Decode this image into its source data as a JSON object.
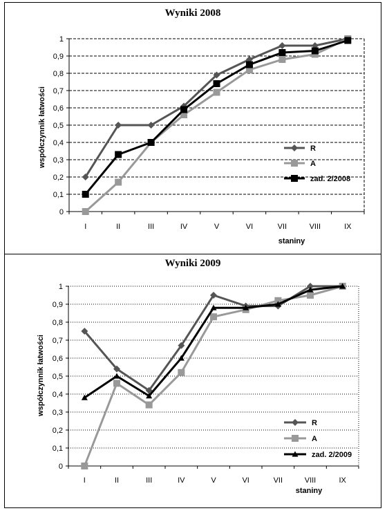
{
  "chart_data": [
    {
      "type": "line",
      "title": "Wyniki 2008",
      "xlabel": "staniny",
      "ylabel": "współczynnik łatwości",
      "categories": [
        "I",
        "II",
        "III",
        "IV",
        "V",
        "VI",
        "VII",
        "VIII",
        "IX"
      ],
      "ylim": [
        0,
        1
      ],
      "yticks": [
        "0",
        "0,1",
        "0,2",
        "0,3",
        "0,4",
        "0,5",
        "0,6",
        "0,7",
        "0,8",
        "0,9",
        "1"
      ],
      "grid": "horizontal dashed",
      "legend_position": "right",
      "series": [
        {
          "name": "R",
          "color": "#555555",
          "marker": "diamond",
          "values": [
            0.2,
            0.5,
            0.5,
            0.61,
            0.79,
            0.88,
            0.96,
            0.96,
            1.0
          ]
        },
        {
          "name": "A",
          "color": "#999999",
          "marker": "square",
          "values": [
            0.0,
            0.17,
            0.4,
            0.56,
            0.69,
            0.82,
            0.88,
            0.91,
            1.0
          ]
        },
        {
          "name": "zad. 2/2008",
          "color": "#000000",
          "marker": "square",
          "values": [
            0.1,
            0.33,
            0.4,
            0.59,
            0.74,
            0.85,
            0.92,
            0.93,
            0.99
          ]
        }
      ]
    },
    {
      "type": "line",
      "title": "Wyniki 2009",
      "xlabel": "staniny",
      "ylabel": "współczynnik łatwości",
      "categories": [
        "I",
        "II",
        "III",
        "IV",
        "V",
        "VI",
        "VII",
        "VIII",
        "IX"
      ],
      "ylim": [
        0,
        1
      ],
      "yticks": [
        "0",
        "0,1",
        "0,2",
        "0,3",
        "0,4",
        "0,5",
        "0,6",
        "0,7",
        "0,8",
        "0,9",
        "1"
      ],
      "grid": "horizontal dotted",
      "legend_position": "right",
      "series": [
        {
          "name": "R",
          "color": "#555555",
          "marker": "diamond",
          "values": [
            0.75,
            0.54,
            0.42,
            0.67,
            0.95,
            0.89,
            0.89,
            1.0,
            1.0
          ]
        },
        {
          "name": "A",
          "color": "#999999",
          "marker": "square",
          "values": [
            0.0,
            0.46,
            0.34,
            0.52,
            0.83,
            0.87,
            0.92,
            0.95,
            1.0
          ]
        },
        {
          "name": "zad. 2/2009",
          "color": "#000000",
          "marker": "triangle",
          "values": [
            0.38,
            0.5,
            0.39,
            0.6,
            0.88,
            0.88,
            0.9,
            0.98,
            1.0
          ]
        }
      ]
    }
  ]
}
